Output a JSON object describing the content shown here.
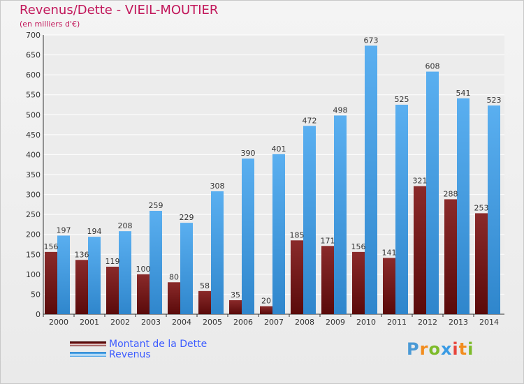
{
  "header": {
    "title": "Revenus/Dette - VIEIL-MOUTIER",
    "unit": "(en milliers d'€)"
  },
  "legend": {
    "items": [
      {
        "label": "Montant de la Dette",
        "color": "#7b1616"
      },
      {
        "label": "Revenus",
        "color": "#3a9be4"
      }
    ]
  },
  "logo": {
    "text": "Proxiti",
    "colors": [
      "#4a9ad6",
      "#f28c1e",
      "#7dbb2a",
      "#3a9be4",
      "#e7453c",
      "#f28c1e",
      "#7dbb2a"
    ]
  },
  "chart_data": {
    "type": "bar",
    "title": "Revenus/Dette - VIEIL-MOUTIER",
    "ylabel": "(en milliers d'€)",
    "ylim": [
      0,
      700
    ],
    "yticks": [
      0,
      50,
      100,
      150,
      200,
      250,
      300,
      350,
      400,
      450,
      500,
      550,
      600,
      650,
      700
    ],
    "grid": true,
    "legend_position": "bottom-left",
    "categories": [
      "2000",
      "2001",
      "2002",
      "2003",
      "2004",
      "2005",
      "2006",
      "2007",
      "2008",
      "2009",
      "2010",
      "2011",
      "2012",
      "2013",
      "2014"
    ],
    "series": [
      {
        "name": "Montant de la Dette",
        "color": "#7b1616",
        "values": [
          156,
          136,
          119,
          100,
          80,
          58,
          35,
          20,
          185,
          171,
          156,
          141,
          321,
          288,
          253
        ]
      },
      {
        "name": "Revenus",
        "color": "#3a9be4",
        "values": [
          197,
          194,
          208,
          259,
          229,
          308,
          390,
          401,
          472,
          498,
          673,
          525,
          608,
          541,
          523
        ]
      }
    ]
  }
}
